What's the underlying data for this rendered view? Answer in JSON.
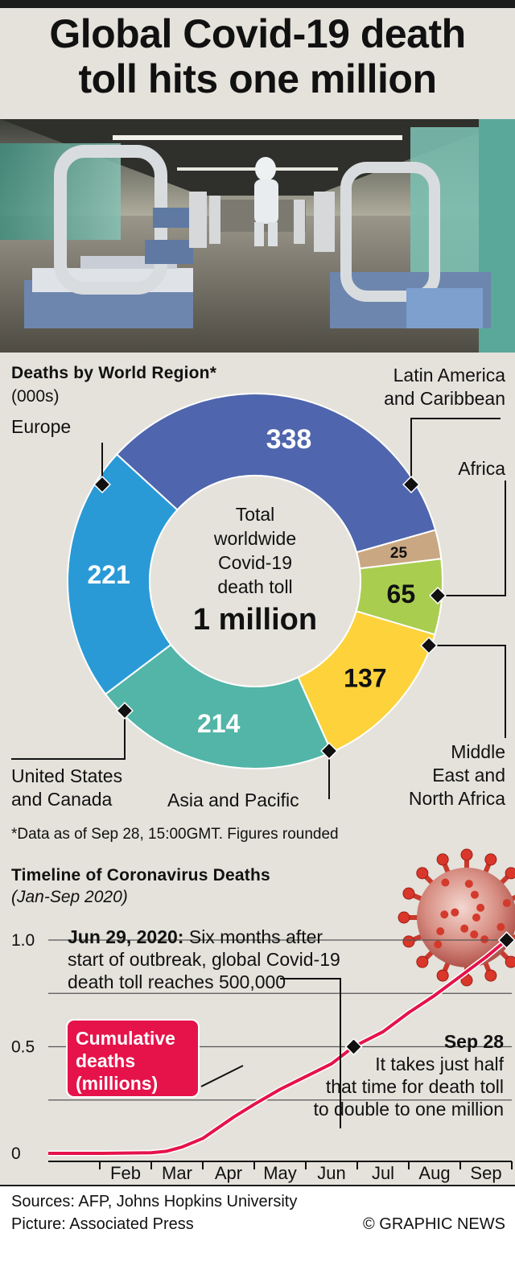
{
  "title": {
    "line1": "Global Covid-19 death",
    "line2": "toll hits one million"
  },
  "donut": {
    "heading": "Deaths by World Region*",
    "unit": "(000s)",
    "center": {
      "line1": "Total",
      "line2": "worldwide",
      "line3": "Covid-19",
      "line4": "death toll",
      "total": "1 million"
    },
    "labels": {
      "europe": "Europe",
      "latam1": "Latin America",
      "latam2": "and Caribbean",
      "africa": "Africa",
      "mena1": "Middle",
      "mena2": "East and",
      "mena3": "North Africa",
      "asia": "Asia and Pacific",
      "usc1": "United States",
      "usc2": "and Canada"
    },
    "footnote": "*Data as of Sep 28, 15:00GMT. Figures rounded"
  },
  "timeline": {
    "heading": "Timeline of Coronavirus Deaths",
    "subheading": "(Jan-Sep 2020)",
    "annotation1": {
      "bold": "Jun 29, 2020:",
      "text1": " Six months after",
      "text2": "start of outbreak, global Covid-19",
      "text3": "death toll reaches 500,000"
    },
    "annotation2": {
      "bold": "Sep 28",
      "line1": "It takes just half",
      "line2": "that time for death toll",
      "line3": "to double to one million"
    },
    "badge": {
      "line1": "Cumulative",
      "line2": "deaths",
      "line3": "(millions)"
    }
  },
  "footer": {
    "sources": "Sources: AFP, Johns Hopkins University",
    "picture": "Picture: Associated Press",
    "credit": "© GRAPHIC NEWS"
  },
  "chart_data": [
    {
      "type": "pie",
      "title": "Deaths by World Region*",
      "unit": "000s",
      "categories": [
        "Latin America and Caribbean",
        "Africa",
        "Middle East and North Africa",
        "Asia and Pacific",
        "United States and Canada",
        "Europe"
      ],
      "values": [
        338,
        25,
        65,
        137,
        214,
        221
      ],
      "colors": [
        "#4f65ad",
        "#c9a783",
        "#a9cd4f",
        "#fdd23b",
        "#52b5a7",
        "#2a9ad6"
      ]
    },
    {
      "type": "line",
      "title": "Timeline of Coronavirus Deaths",
      "ylabel": "Cumulative deaths (millions)",
      "ylim": [
        0,
        1.0
      ],
      "yticks": [
        0,
        0.5,
        1.0
      ],
      "ytick_labels": [
        "0",
        "0.5",
        "1.0"
      ],
      "xticks": [
        "Feb",
        "Mar",
        "Apr",
        "May",
        "Jun",
        "Jul",
        "Aug",
        "Sep"
      ],
      "xmonth_range": [
        0,
        9
      ],
      "series": [
        {
          "color": "#e5134a",
          "x": [
            0,
            1,
            2,
            2.3,
            2.6,
            3,
            3.3,
            3.6,
            4,
            4.5,
            5,
            5.5,
            5.93,
            6.5,
            7,
            7.5,
            8,
            8.5,
            8.9
          ],
          "y": [
            0,
            0,
            0.003,
            0.01,
            0.03,
            0.07,
            0.12,
            0.17,
            0.23,
            0.3,
            0.36,
            0.42,
            0.5,
            0.57,
            0.66,
            0.74,
            0.83,
            0.92,
            1.0
          ]
        }
      ]
    }
  ]
}
